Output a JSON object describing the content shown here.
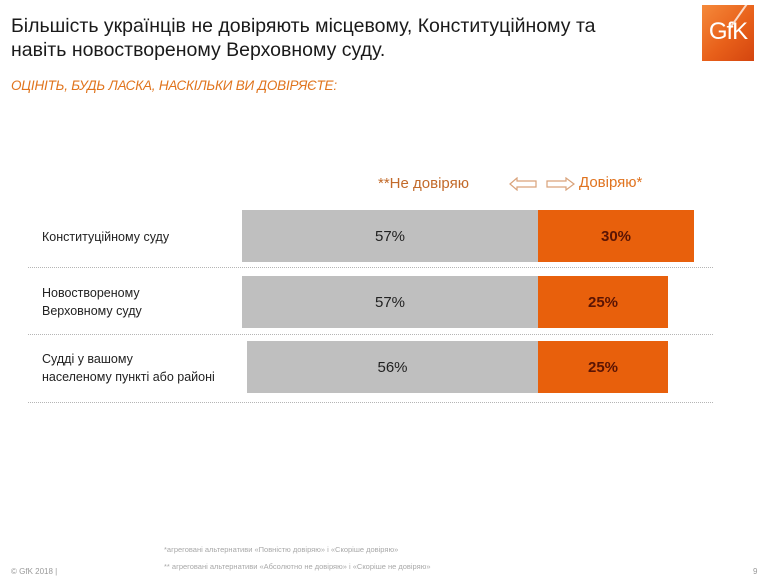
{
  "header": {
    "title": "Більшість українців не довіряють місцевому, Конституційному  та\nнавіть новоствореному Верховному суду.",
    "subtitle": "ОЦІНІТЬ, БУДЬ ЛАСКА, НАСКІЛЬКИ ВИ ДОВІРЯЄТЕ:",
    "logo_text": "GfK"
  },
  "colors": {
    "distrust": "#bfbfbf",
    "trust": "#e8600c",
    "subtitle": "#e0741d"
  },
  "chart_data": {
    "type": "bar",
    "orientation": "horizontal-diverging",
    "legend": {
      "distrust": "**Не довіряю",
      "trust": "Довіряю*"
    },
    "categories": [
      "Конституційному  суду",
      "Новоствореному\nВерхо­вному суду",
      "Судді у вашому\nнаселеному пункті або районі"
    ],
    "series": [
      {
        "name": "**Не довіряю",
        "values": [
          57,
          57,
          56
        ],
        "labels": [
          "57%",
          "57%",
          "56%"
        ]
      },
      {
        "name": "Довіряю*",
        "values": [
          30,
          25,
          25
        ],
        "labels": [
          "30%",
          "25%",
          "25%"
        ]
      }
    ],
    "unit": "%"
  },
  "footer": {
    "note1": "*агреговані альтернативи «Повністю довіряю» і «Скоріше довіряю»",
    "note2": "** агреговані альтернативи «Абсолютно не довіряю» і «Скоріше не довіряю»",
    "copyright": "© GfK 2018 |",
    "page": "9"
  }
}
